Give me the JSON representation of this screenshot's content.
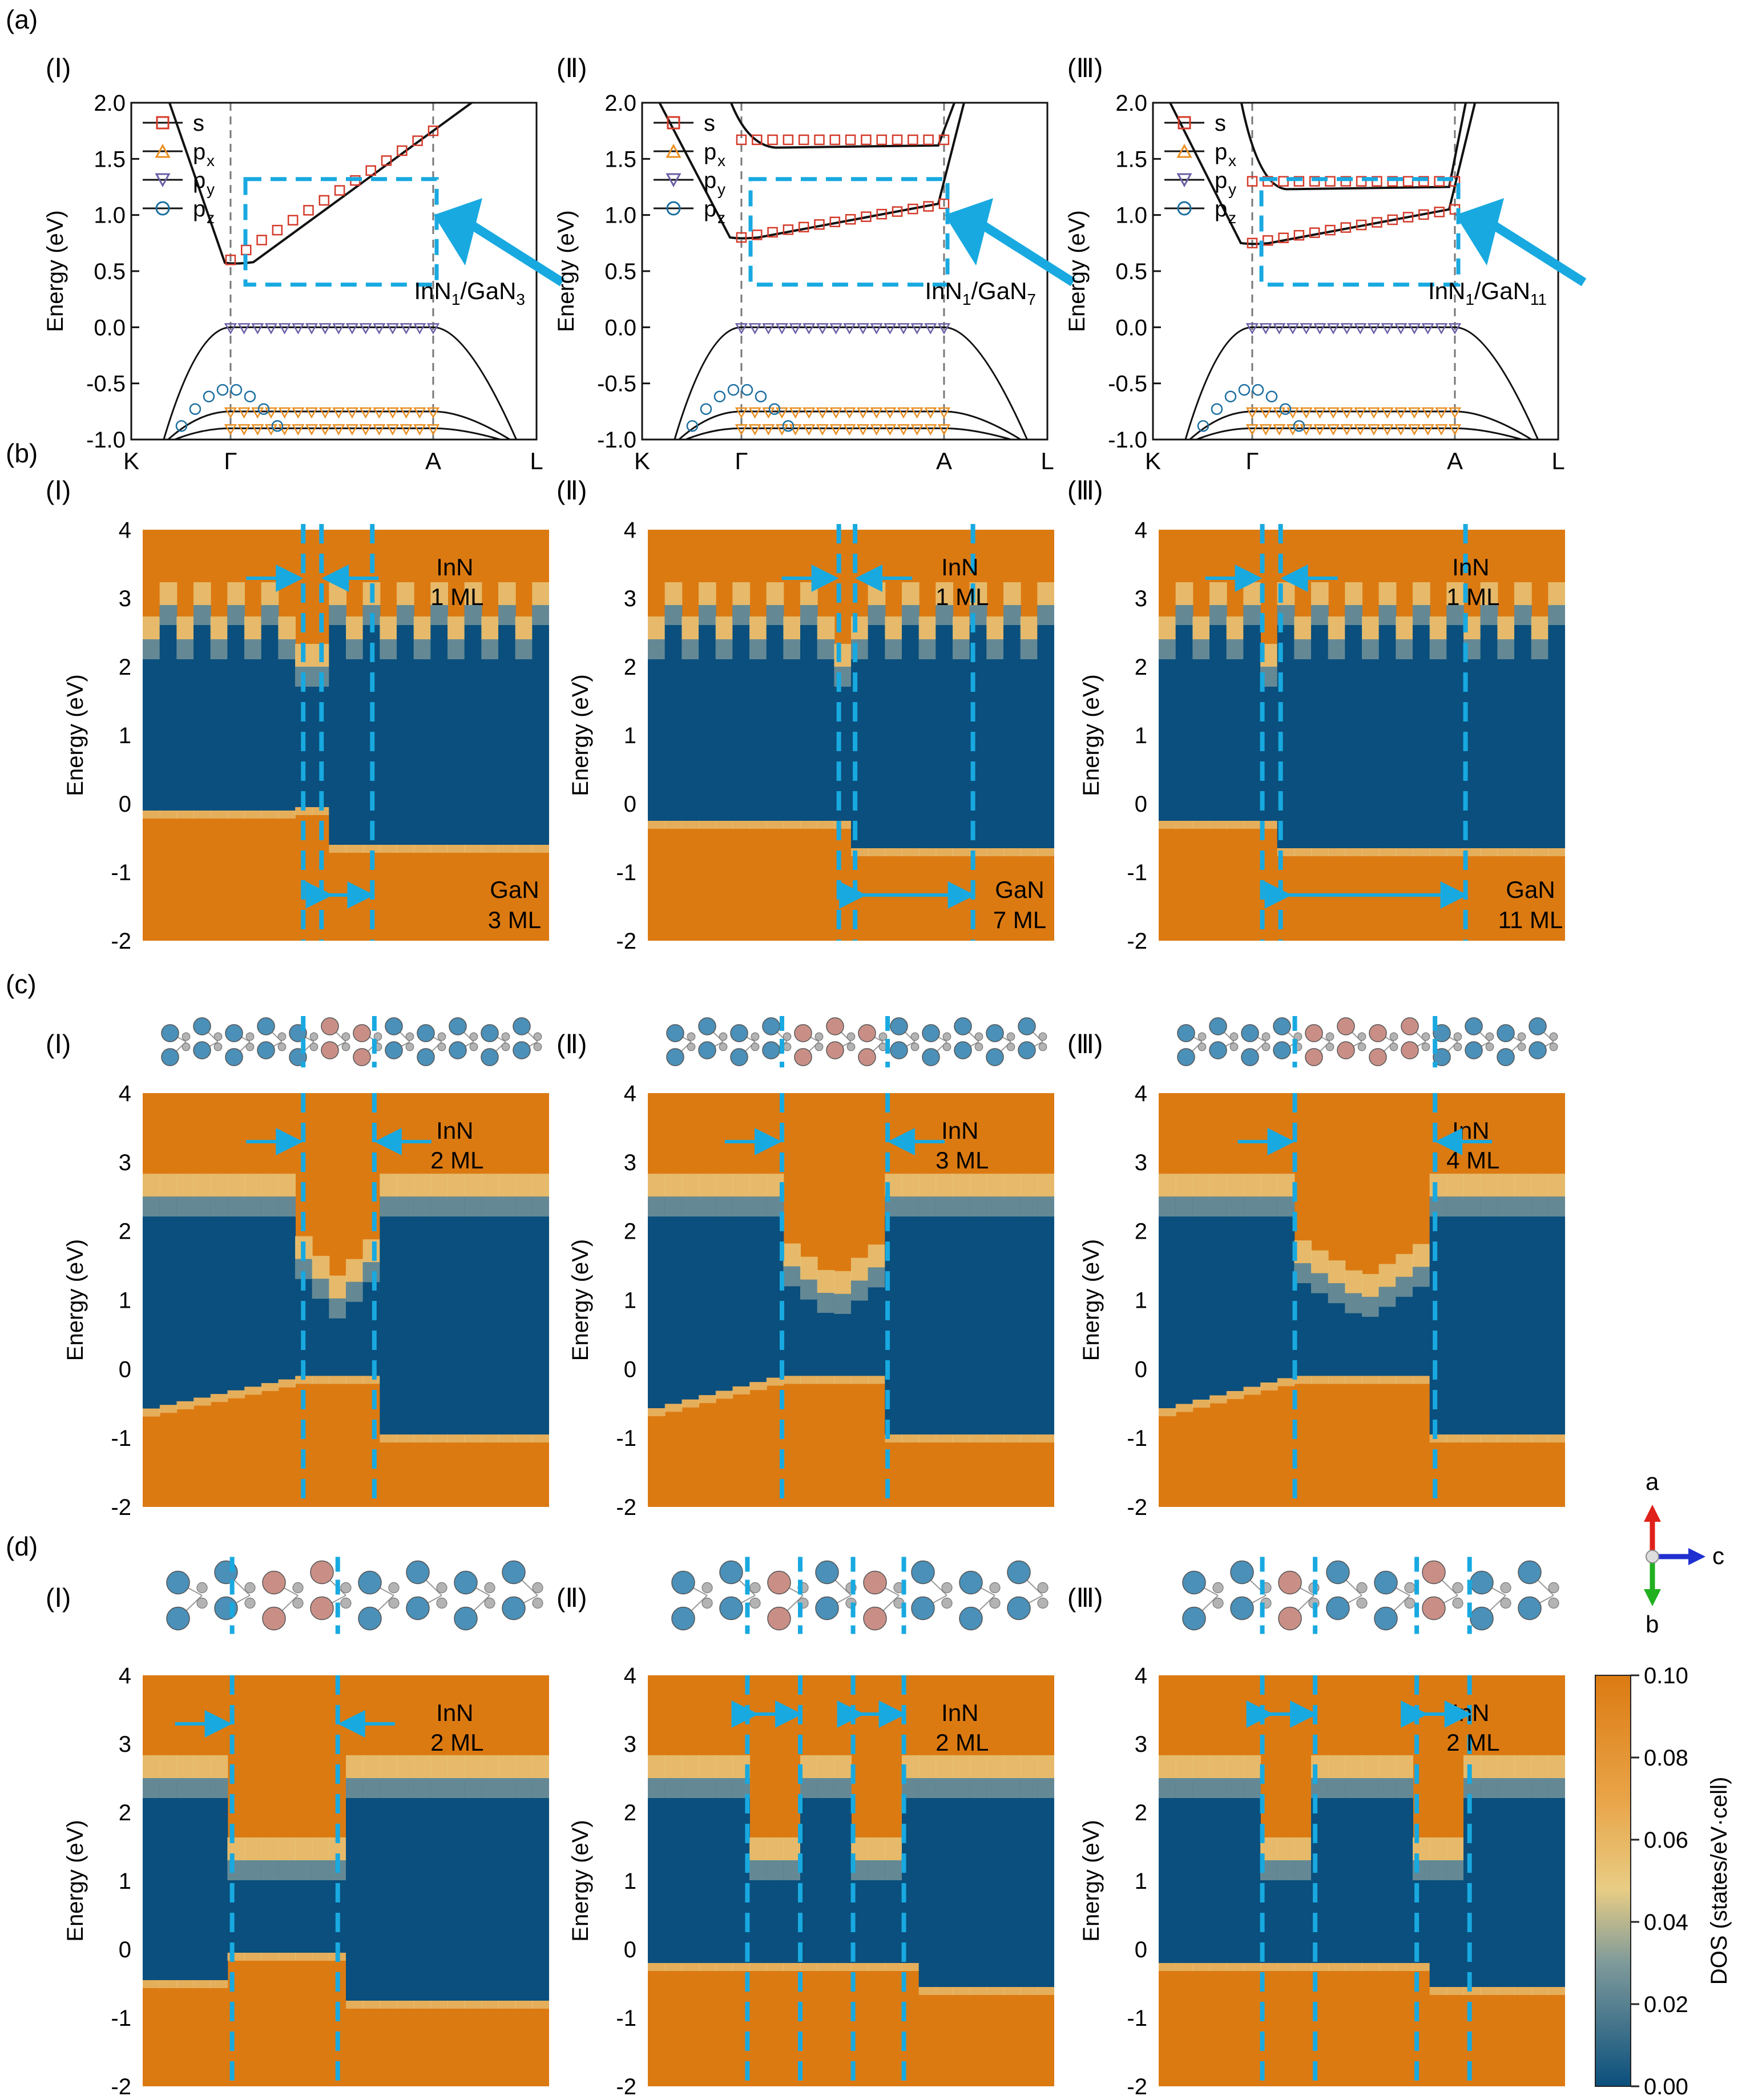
{
  "figure": {
    "panel_labels": [
      "(a)",
      "(b)",
      "(c)",
      "(d)"
    ],
    "sub_labels": [
      "(Ⅰ)",
      "(Ⅱ)",
      "(Ⅲ)"
    ],
    "colors": {
      "orange": "#dc7a12",
      "blue": "#0a4f7d",
      "cyan": "#18a9e0",
      "s": "#d43a2a",
      "px": "#ea8f22",
      "py": "#6a5fa6",
      "pz": "#1b6fa0",
      "ga_atom": "#4a90b8",
      "in_atom": "#c98f86",
      "n_atom": "#b3b3b3"
    }
  },
  "band_panels": [
    {
      "ylabel": "Energy (eV)",
      "yticks": [
        "2.0",
        "1.5",
        "1.0",
        "0.5",
        "0.0",
        "-0.5",
        "-1.0"
      ],
      "kpoints": [
        "K",
        "Γ",
        "A",
        "L"
      ],
      "legend": [
        "s",
        "p",
        "p",
        "p"
      ],
      "legend_sub": [
        "",
        "x",
        "y",
        "z"
      ],
      "label_main": "InN",
      "label_sub1": "1",
      "label_mid": "/GaN",
      "label_sub2": "3"
    },
    {
      "ylabel": "Energy (eV)",
      "yticks": [
        "2.0",
        "1.5",
        "1.0",
        "0.5",
        "0.0",
        "-0.5",
        "-1.0"
      ],
      "kpoints": [
        "K",
        "Γ",
        "A",
        "L"
      ],
      "legend": [
        "s",
        "p",
        "p",
        "p"
      ],
      "legend_sub": [
        "",
        "x",
        "y",
        "z"
      ],
      "label_main": "InN",
      "label_sub1": "1",
      "label_mid": "/GaN",
      "label_sub2": "7"
    },
    {
      "ylabel": "Energy (eV)",
      "yticks": [
        "2.0",
        "1.5",
        "1.0",
        "0.5",
        "0.0",
        "-0.5",
        "-1.0"
      ],
      "kpoints": [
        "K",
        "Γ",
        "A",
        "L"
      ],
      "legend": [
        "s",
        "p",
        "p",
        "p"
      ],
      "legend_sub": [
        "",
        "x",
        "y",
        "z"
      ],
      "label_main": "InN",
      "label_sub1": "1",
      "label_mid": "/GaN",
      "label_sub2": "11"
    }
  ],
  "dos_rows": {
    "ylabel": "Energy (eV)",
    "yticks": [
      "4",
      "3",
      "2",
      "1",
      "0",
      "-1",
      "-2"
    ],
    "b": [
      {
        "top1": "InN",
        "top2": "1 ML",
        "bot1": "GaN",
        "bot2": "3 ML"
      },
      {
        "top1": "InN",
        "top2": "1 ML",
        "bot1": "GaN",
        "bot2": "7 ML"
      },
      {
        "top1": "InN",
        "top2": "1 ML",
        "bot1": "GaN",
        "bot2": "11 ML"
      }
    ],
    "c": [
      {
        "top1": "InN",
        "top2": "2 ML"
      },
      {
        "top1": "InN",
        "top2": "3 ML"
      },
      {
        "top1": "InN",
        "top2": "4 ML"
      }
    ],
    "d": [
      {
        "top1": "InN",
        "top2": "2 ML"
      },
      {
        "top1": "InN",
        "top2": "2 ML"
      },
      {
        "top1": "InN",
        "top2": "2 ML"
      }
    ]
  },
  "colorbar": {
    "label": "DOS (states/eV·cell)",
    "ticks": [
      "0.10",
      "0.08",
      "0.06",
      "0.04",
      "0.02",
      "0.00"
    ]
  },
  "axes_icon": {
    "a": "a",
    "b": "b",
    "c": "c"
  }
}
